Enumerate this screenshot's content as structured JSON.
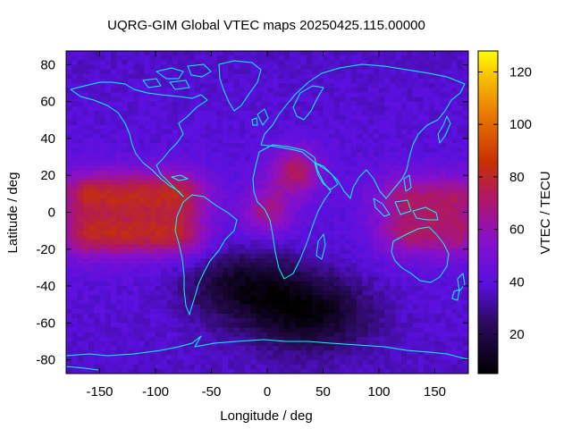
{
  "chart_data": {
    "type": "heatmap",
    "title": "UQRG-GIM Global VTEC maps 20250425.115.00000",
    "xlabel": "Longitude / deg",
    "ylabel": "Latitude / deg",
    "colorbar_label": "VTEC / TECU",
    "xlim": [
      -180,
      180
    ],
    "ylim": [
      -87.5,
      87.5
    ],
    "x_ticks": [
      -150,
      -100,
      -50,
      0,
      50,
      100,
      150
    ],
    "y_ticks": [
      -80,
      -60,
      -40,
      -20,
      0,
      20,
      40,
      60,
      80
    ],
    "colorbar_range": [
      5,
      128
    ],
    "colorbar_ticks": [
      20,
      40,
      60,
      80,
      100,
      120
    ],
    "colormap": "black-purple-red-orange-yellow",
    "coastline_color": "#00ffff",
    "grid_lon_step_deg": 5,
    "grid_lat_step_deg": 2.5,
    "background_vtec": 36,
    "features": [
      {
        "kind": "equatorial-anomaly-crest",
        "lon_range": [
          -180,
          -60
        ],
        "lat": 10,
        "peak_vtec": 100
      },
      {
        "kind": "equatorial-anomaly-crest",
        "lon_range": [
          -180,
          -60
        ],
        "lat": -12,
        "peak_vtec": 100
      },
      {
        "kind": "equatorial-anomaly-crest",
        "lon_range": [
          115,
          180
        ],
        "lat": 8,
        "peak_vtec": 82
      },
      {
        "kind": "equatorial-anomaly-crest",
        "lon_range": [
          115,
          180
        ],
        "lat": -12,
        "peak_vtec": 82
      },
      {
        "kind": "enhancement",
        "lon": 25,
        "lat": 22,
        "peak_vtec": 78
      },
      {
        "kind": "enhancement",
        "lon": 0,
        "lat": 0,
        "peak_vtec": 70
      },
      {
        "kind": "depletion",
        "lon": 40,
        "lat": -55,
        "min_vtec": 8
      },
      {
        "kind": "depletion",
        "lon": -20,
        "lat": -40,
        "min_vtec": 10
      }
    ]
  }
}
